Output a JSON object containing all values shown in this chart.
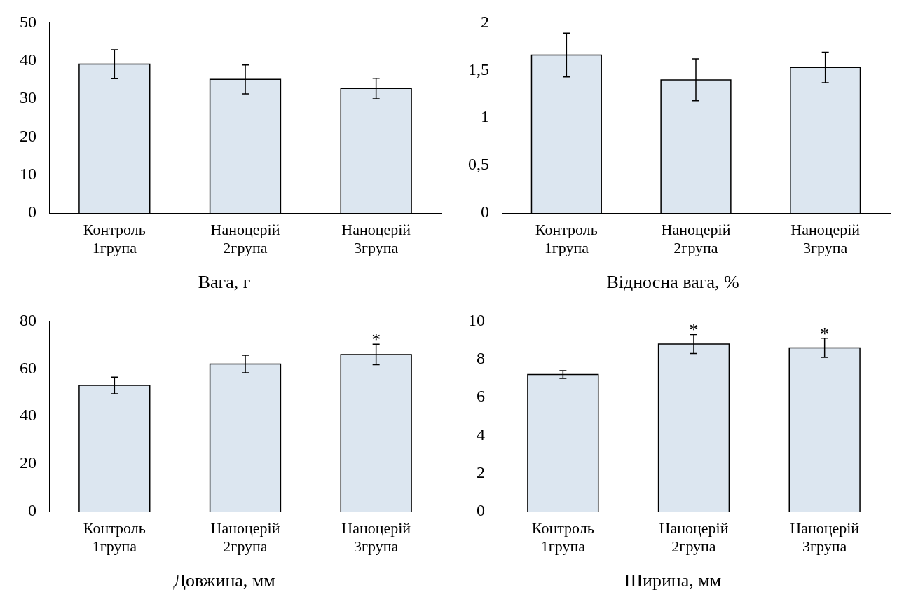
{
  "chart_data": [
    {
      "type": "bar",
      "title": "Вага, г",
      "categories": [
        "Контроль\n1група",
        "Наноцерій\n2група",
        "Наноцерій\n3група"
      ],
      "values": [
        39.1,
        35.1,
        32.7
      ],
      "errors": [
        3.8,
        3.8,
        2.7
      ],
      "color": "#dce6f0",
      "ylim": [
        0,
        50
      ],
      "yticks": [
        0,
        10,
        20,
        30,
        40,
        50
      ],
      "grid": false,
      "legend": false
    },
    {
      "type": "bar",
      "title": "Відносна вага, %",
      "categories": [
        "Контроль\n1група",
        "Наноцерій\n2група",
        "Наноцерій\n3група"
      ],
      "values": [
        1.66,
        1.4,
        1.53
      ],
      "errors": [
        0.23,
        0.22,
        0.16
      ],
      "color": "#dce6f0",
      "ylim": [
        0,
        2
      ],
      "yticks": [
        0,
        {
          "value": 0.5,
          "label": "0,5"
        },
        1,
        {
          "value": 1.5,
          "label": "1,5"
        },
        2
      ],
      "grid": false,
      "legend": false
    },
    {
      "type": "bar",
      "title": "Довжина, мм",
      "categories": [
        "Контроль\n1група",
        "Наноцерій\n2група",
        "Наноцерій\n3група"
      ],
      "values": [
        53,
        62,
        66
      ],
      "errors": [
        3.5,
        3.7,
        4.3
      ],
      "color": "#dce6f0",
      "ylim": [
        0,
        80
      ],
      "yticks": [
        0,
        20,
        40,
        60,
        80
      ],
      "grid": false,
      "legend": false,
      "annotations": [
        {
          "text": "*",
          "x": "Наноцерій\n3група",
          "y": 70.3
        }
      ]
    },
    {
      "type": "bar",
      "title": "Ширина, мм",
      "categories": [
        "Контроль\n1група",
        "Наноцерій\n2група",
        "Наноцерій\n3група"
      ],
      "values": [
        7.2,
        8.8,
        8.6
      ],
      "errors": [
        0.2,
        0.5,
        0.5
      ],
      "color": "#dce6f0",
      "ylim": [
        0,
        10
      ],
      "yticks": [
        0,
        2,
        4,
        6,
        8,
        10
      ],
      "grid": false,
      "legend": false,
      "annotations": [
        {
          "text": "*",
          "x": "Наноцерій\n2група",
          "y": 9.3
        },
        {
          "text": "*",
          "x": "Наноцерій\n3група",
          "y": 9.1
        }
      ]
    }
  ]
}
